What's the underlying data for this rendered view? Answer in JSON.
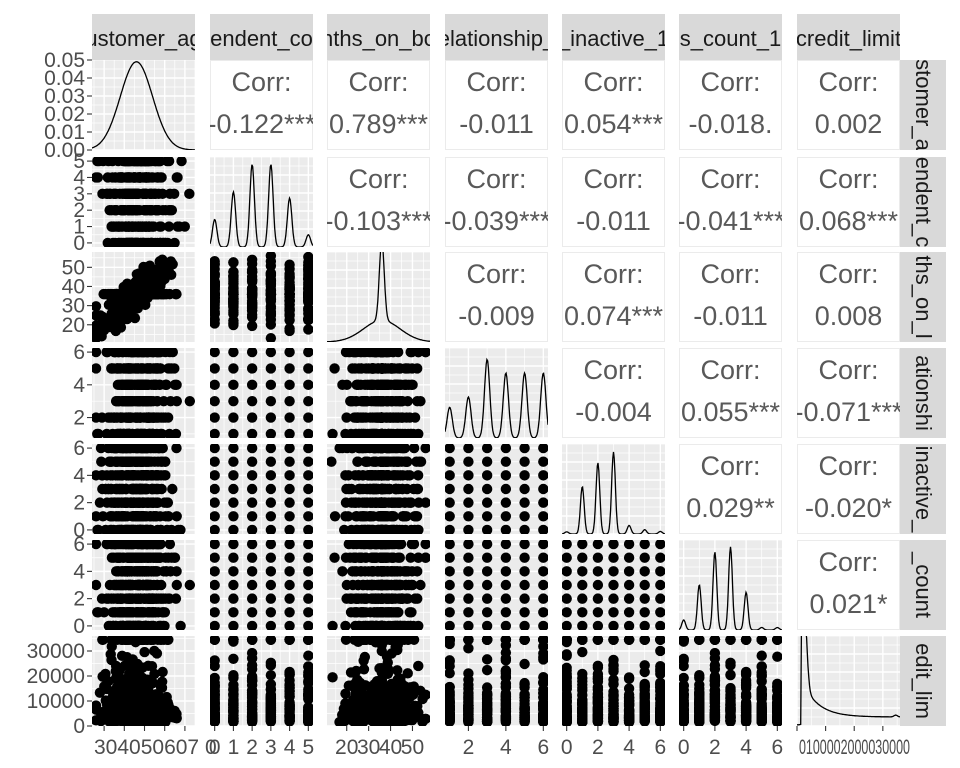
{
  "chart_data": {
    "type": "scatter-matrix",
    "variables": [
      {
        "strip": "ustomer_ag",
        "range": [
          24,
          75
        ],
        "ticks": [
          {
            "v": 30,
            "t": "30"
          },
          {
            "v": 40,
            "t": "40"
          },
          {
            "v": 50,
            "t": "50"
          },
          {
            "v": 60,
            "t": "60"
          },
          {
            "v": 70,
            "t": "70"
          }
        ]
      },
      {
        "strip": "endent_co",
        "range": [
          -0.25,
          5.25
        ],
        "ticks": [
          {
            "v": 0,
            "t": "0"
          },
          {
            "v": 1,
            "t": "1"
          },
          {
            "v": 2,
            "t": "2"
          },
          {
            "v": 3,
            "t": "3"
          },
          {
            "v": 4,
            "t": "4"
          },
          {
            "v": 5,
            "t": "5"
          }
        ]
      },
      {
        "strip": "nths_on_bo",
        "range": [
          11,
          58
        ],
        "ticks": [
          {
            "v": 20,
            "t": "20"
          },
          {
            "v": 30,
            "t": "30"
          },
          {
            "v": 40,
            "t": "40"
          },
          {
            "v": 50,
            "t": "50"
          }
        ]
      },
      {
        "strip": "elationship_",
        "range": [
          0.75,
          6.25
        ],
        "ticks": [
          {
            "v": 2,
            "t": "2"
          },
          {
            "v": 4,
            "t": "4"
          },
          {
            "v": 6,
            "t": "6"
          }
        ]
      },
      {
        "strip": "_inactive_1",
        "range": [
          -0.3,
          6.3
        ],
        "ticks": [
          {
            "v": 0,
            "t": "0"
          },
          {
            "v": 2,
            "t": "2"
          },
          {
            "v": 4,
            "t": "4"
          },
          {
            "v": 6,
            "t": "6"
          }
        ]
      },
      {
        "strip": "s_count_1",
        "range": [
          -0.3,
          6.3
        ],
        "ticks": [
          {
            "v": 0,
            "t": "0"
          },
          {
            "v": 2,
            "t": "2"
          },
          {
            "v": 4,
            "t": "4"
          },
          {
            "v": 6,
            "t": "6"
          }
        ]
      },
      {
        "strip": "credit_limit",
        "range": [
          0,
          36000
        ],
        "ticks": [
          {
            "v": 0,
            "t": "0"
          },
          {
            "v": 10000,
            "t": "10000"
          },
          {
            "v": 20000,
            "t": "20000"
          },
          {
            "v": 30000,
            "t": "30000"
          }
        ]
      }
    ],
    "right_strips": [
      "stomer_a",
      "endent_c",
      "ths_on_l",
      "ationshi",
      "inactive_",
      "_count",
      "edit_lim"
    ],
    "x_axis_labels": [
      "30",
      "40",
      "50",
      "60",
      "70",
      "0",
      "1",
      "2",
      "3",
      "4",
      "5",
      "20",
      "30",
      "40",
      "50",
      "2",
      "4",
      "6",
      "0",
      "2",
      "4",
      "6",
      "0",
      "2",
      "4",
      "6",
      "0",
      "10000",
      "20000",
      "30000"
    ],
    "x_tick_text": {
      "col0": "304050607 0",
      "col6": "0100002000030000"
    },
    "density_ylim": [
      0,
      0.05
    ],
    "density_yticks": [
      "0.05",
      "0.04",
      "0.03",
      "0.02",
      "0.01",
      "0.00"
    ],
    "correlations": [
      {
        "row": 0,
        "col": 1,
        "label": "Corr:",
        "value": "-0.122***"
      },
      {
        "row": 0,
        "col": 2,
        "label": "Corr:",
        "value": "0.789***"
      },
      {
        "row": 0,
        "col": 3,
        "label": "Corr:",
        "value": "-0.011"
      },
      {
        "row": 0,
        "col": 4,
        "label": "Corr:",
        "value": "0.054***"
      },
      {
        "row": 0,
        "col": 5,
        "label": "Corr:",
        "value": "-0.018."
      },
      {
        "row": 0,
        "col": 6,
        "label": "Corr:",
        "value": "0.002"
      },
      {
        "row": 1,
        "col": 2,
        "label": "Corr:",
        "value": "-0.103***"
      },
      {
        "row": 1,
        "col": 3,
        "label": "Corr:",
        "value": "-0.039***"
      },
      {
        "row": 1,
        "col": 4,
        "label": "Corr:",
        "value": "-0.011"
      },
      {
        "row": 1,
        "col": 5,
        "label": "Corr:",
        "value": "-0.041***"
      },
      {
        "row": 1,
        "col": 6,
        "label": "Corr:",
        "value": "0.068***"
      },
      {
        "row": 2,
        "col": 3,
        "label": "Corr:",
        "value": "-0.009"
      },
      {
        "row": 2,
        "col": 4,
        "label": "Corr:",
        "value": "0.074***"
      },
      {
        "row": 2,
        "col": 5,
        "label": "Corr:",
        "value": "-0.011"
      },
      {
        "row": 2,
        "col": 6,
        "label": "Corr:",
        "value": "0.008"
      },
      {
        "row": 3,
        "col": 4,
        "label": "Corr:",
        "value": "-0.004"
      },
      {
        "row": 3,
        "col": 5,
        "label": "Corr:",
        "value": "0.055***"
      },
      {
        "row": 3,
        "col": 6,
        "label": "Corr:",
        "value": "-0.071***"
      },
      {
        "row": 4,
        "col": 5,
        "label": "Corr:",
        "value": "0.029**"
      },
      {
        "row": 4,
        "col": 6,
        "label": "Corr:",
        "value": "-0.020*"
      },
      {
        "row": 5,
        "col": 6,
        "label": "Corr:",
        "value": "0.021*"
      }
    ],
    "grid": true,
    "colors": {
      "panel": "#ebebeb",
      "grid": "#ffffff",
      "strip": "#d9d9d9",
      "points": "#000000",
      "corr_text": "#595959"
    }
  }
}
